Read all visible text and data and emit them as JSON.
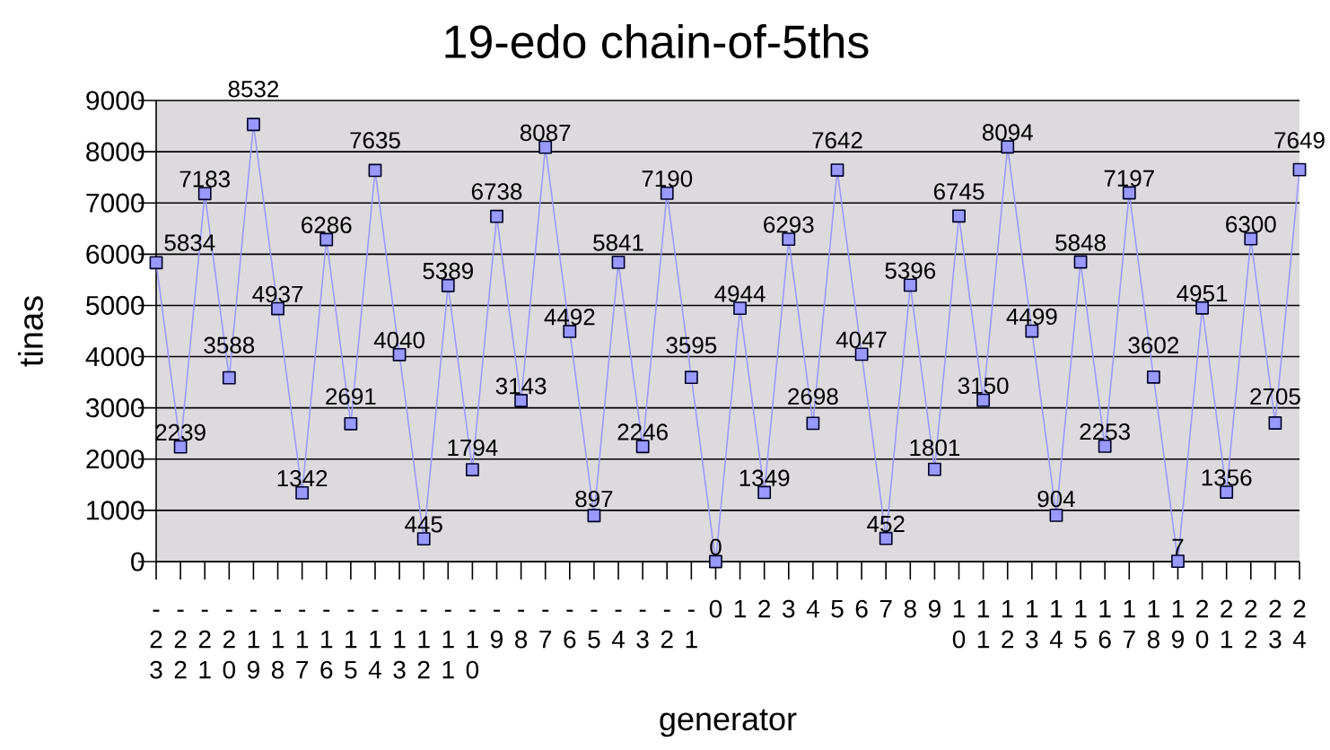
{
  "chart_data": {
    "type": "line",
    "title": "19-edo chain-of-5ths",
    "xlabel": "generator",
    "ylabel": "tinas",
    "categories": [
      "-23",
      "-22",
      "-21",
      "-20",
      "-19",
      "-18",
      "-17",
      "-16",
      "-15",
      "-14",
      "-13",
      "-12",
      "-11",
      "-10",
      "-9",
      "-8",
      "-7",
      "-6",
      "-5",
      "-4",
      "-3",
      "-2",
      "-1",
      "0",
      "1",
      "2",
      "3",
      "4",
      "5",
      "6",
      "7",
      "8",
      "9",
      "10",
      "11",
      "12",
      "13",
      "14",
      "15",
      "16",
      "17",
      "18",
      "19",
      "20",
      "21",
      "22",
      "23",
      "24"
    ],
    "values": [
      5834,
      2239,
      7183,
      3588,
      8532,
      4937,
      1342,
      6286,
      2691,
      7635,
      4040,
      445,
      5389,
      1794,
      6738,
      3143,
      8087,
      4492,
      897,
      5841,
      2246,
      7190,
      3595,
      0,
      4944,
      1349,
      6293,
      2698,
      7642,
      4047,
      452,
      5396,
      1801,
      6745,
      3150,
      8094,
      4499,
      904,
      5848,
      2253,
      7197,
      3602,
      7,
      4951,
      1356,
      6300,
      2705,
      7649
    ],
    "color": "#9999ff",
    "ylim": [
      0,
      9000
    ],
    "yticks": [
      0,
      1000,
      2000,
      3000,
      4000,
      5000,
      6000,
      7000,
      8000,
      9000
    ],
    "grid": "y",
    "marker": "square",
    "line_style": "solid",
    "data_labels": true
  }
}
